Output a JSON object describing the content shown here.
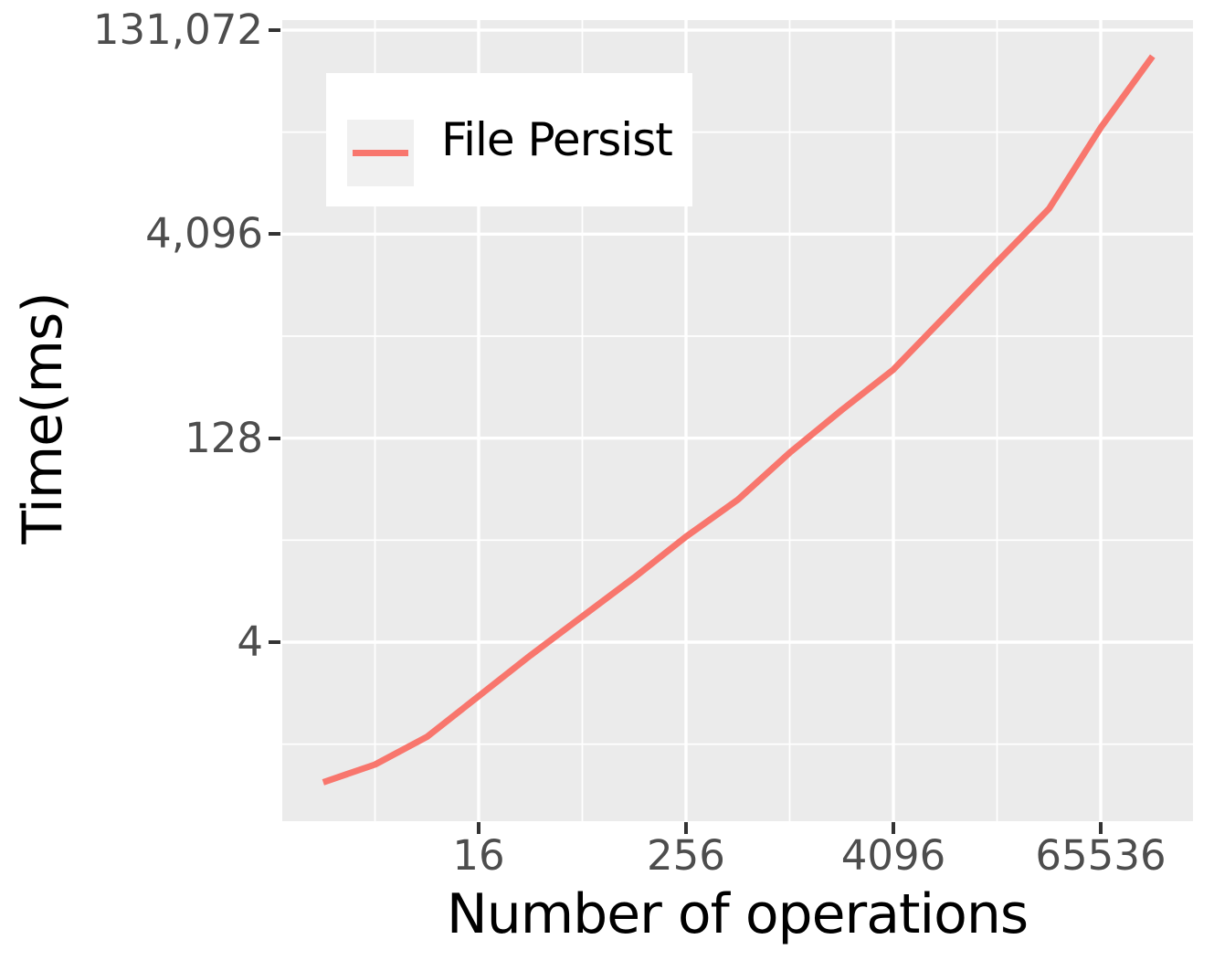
{
  "figure": {
    "background": "#FFFFFF",
    "panel_background": "#EBEBEB",
    "grid_color": "#FFFFFF",
    "tick_color": "#333333",
    "axis_text_color": "#4D4D4D",
    "axis_title_color": "#000000"
  },
  "chart_data": {
    "type": "line",
    "title": "",
    "xlabel": "Number of operations",
    "ylabel": "Time(ms)",
    "x_scale": "log2",
    "y_scale": "log2",
    "grid": "on",
    "x_ticks": {
      "values": [
        16,
        256,
        4096,
        65536
      ],
      "labels": [
        "16",
        "256",
        "4096",
        "65536"
      ],
      "minor": [
        4,
        64,
        1024,
        16384
      ]
    },
    "y_ticks": {
      "values": [
        131072,
        4096,
        128,
        4
      ],
      "labels": [
        "131,072",
        "4,096",
        "128",
        "4"
      ],
      "minor": [
        23170.5,
        724.1,
        22.63,
        0.707
      ]
    },
    "xlim_approx": [
      1.2,
      225000
    ],
    "ylim_approx": [
      0.19,
      155000
    ],
    "series": [
      {
        "name": "File Persist",
        "color": "#F8766D",
        "x": [
          2,
          4,
          8,
          16,
          32,
          64,
          128,
          256,
          512,
          1024,
          2048,
          4096,
          8192,
          16384,
          32768,
          65536,
          131072
        ],
        "y": [
          0.37,
          0.5,
          0.8,
          1.6,
          3.2,
          6.2,
          12,
          24,
          45,
          100,
          206,
          410,
          1020,
          2550,
          6300,
          25000,
          84000
        ]
      }
    ],
    "legend": {
      "position": "top-left-inset",
      "entries": [
        "File Persist"
      ]
    }
  }
}
